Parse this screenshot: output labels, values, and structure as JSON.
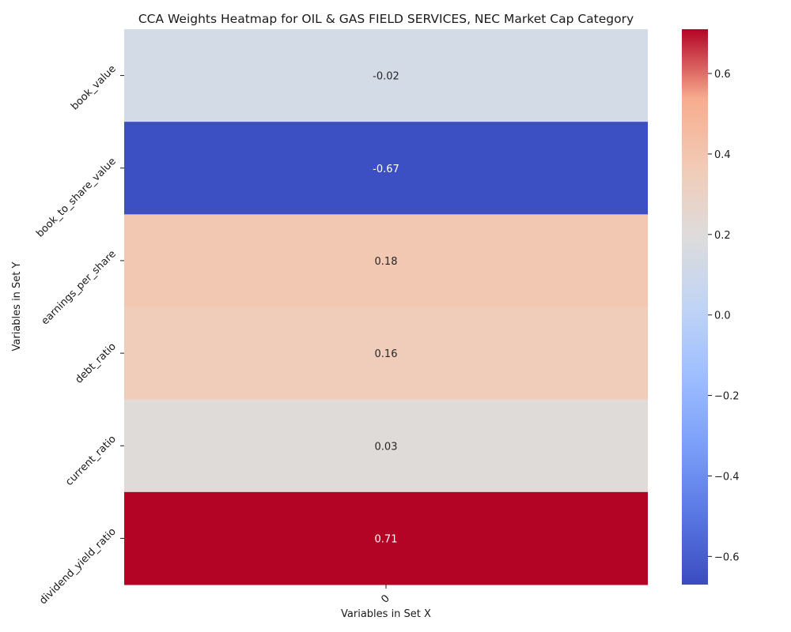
{
  "chart_data": {
    "type": "heatmap",
    "title": "CCA Weights Heatmap for OIL & GAS FIELD SERVICES, NEC Market Cap Category",
    "xlabel": "Variables in Set X",
    "ylabel": "Variables in Set Y",
    "x_categories": [
      "0"
    ],
    "y_categories": [
      "book_value",
      "book_to_share_value",
      "earnings_per_share",
      "debt_ratio",
      "current_ratio",
      "dividend_yield_ratio"
    ],
    "values": [
      [
        -0.02
      ],
      [
        -0.67
      ],
      [
        0.18
      ],
      [
        0.16
      ],
      [
        0.03
      ],
      [
        0.71
      ]
    ],
    "value_labels": [
      "-0.02",
      "-0.67",
      "0.18",
      "0.16",
      "0.03",
      "0.71"
    ],
    "colormap": "coolwarm",
    "colorbar": {
      "vmin": -0.67,
      "vmax": 0.71,
      "ticks": [
        -0.6,
        -0.4,
        -0.2,
        0.0,
        0.2,
        0.4,
        0.6
      ],
      "tick_labels": [
        "−0.6",
        "−0.4",
        "−0.2",
        "0.0",
        "0.2",
        "0.4",
        "0.6"
      ]
    },
    "cell_colors": [
      "#d3dbe7",
      "#3d50c3",
      "#f2c8b2",
      "#f0cdbb",
      "#dfdbd8",
      "#b40426"
    ],
    "label_colors": [
      "#262626",
      "#ffffff",
      "#262626",
      "#262626",
      "#262626",
      "#ffffff"
    ]
  }
}
